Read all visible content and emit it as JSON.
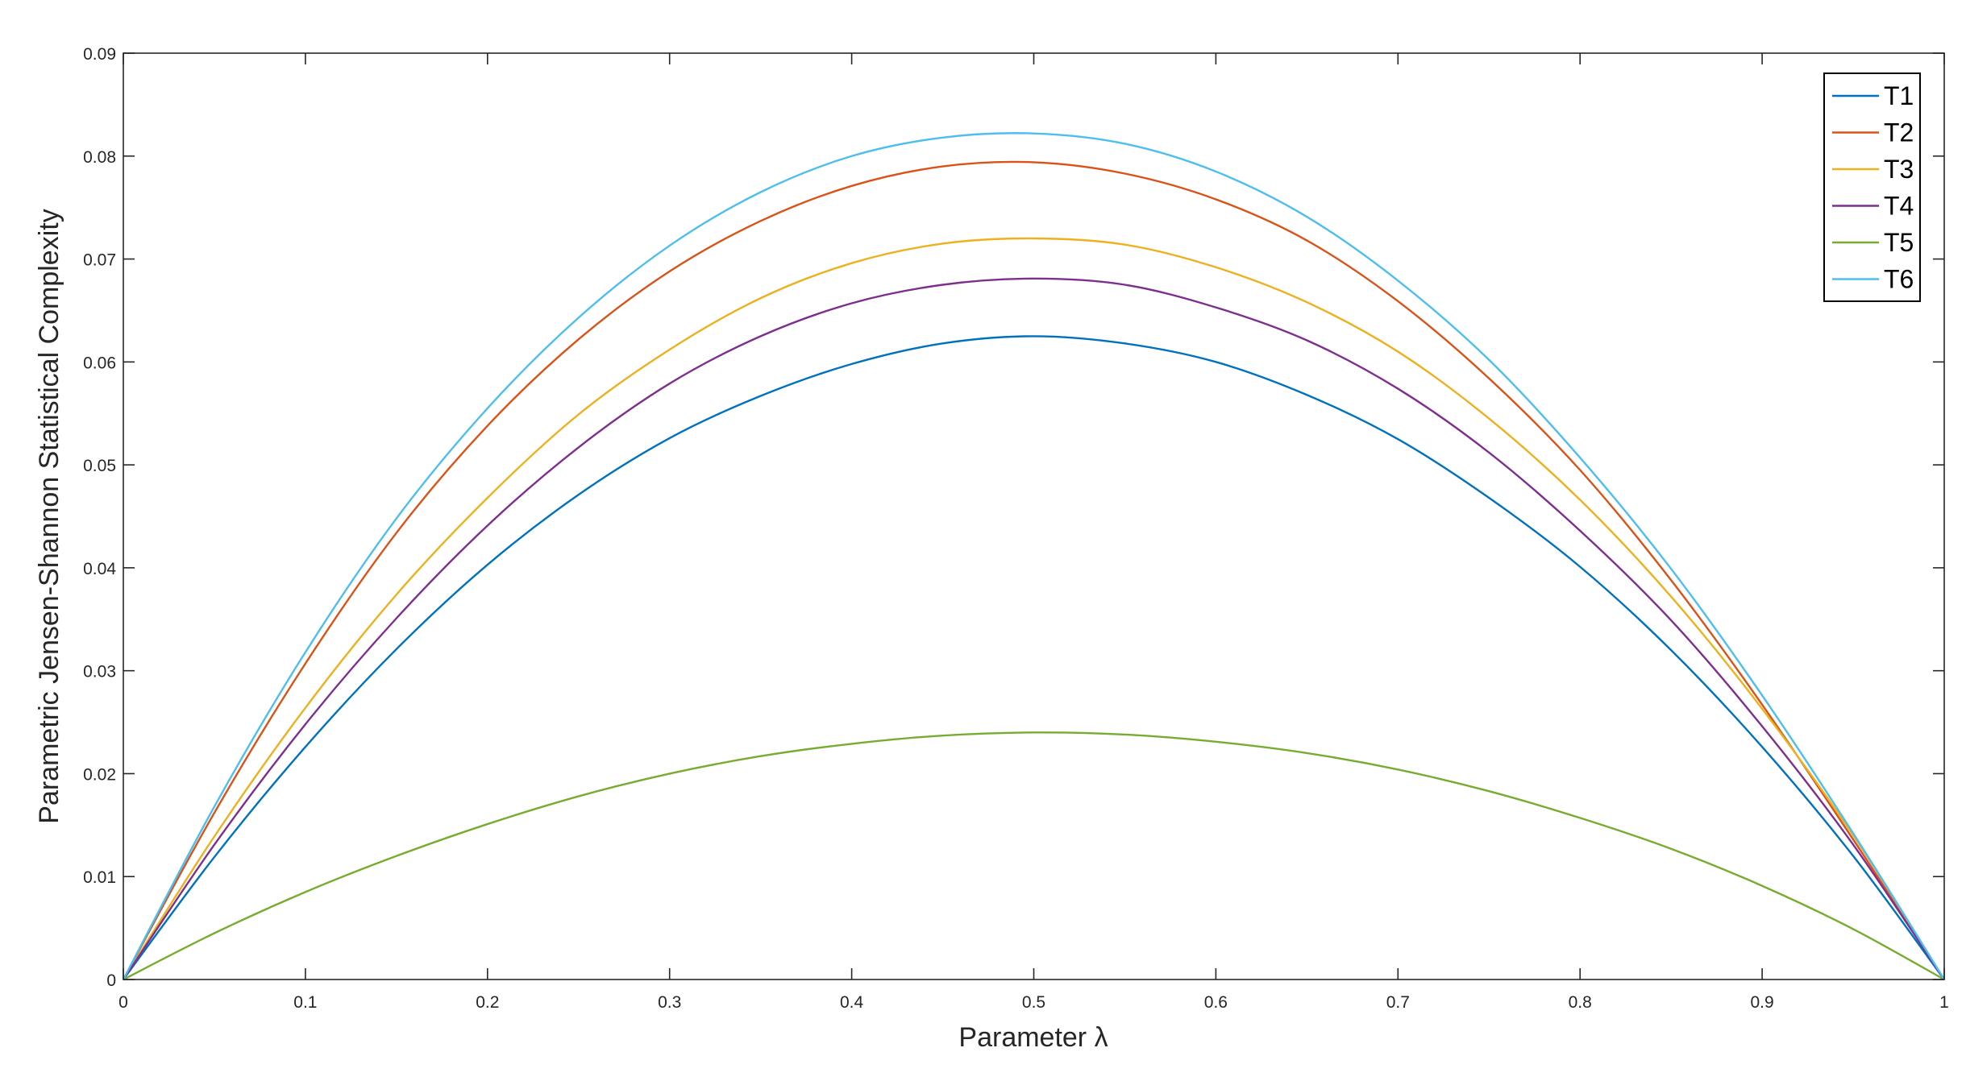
{
  "chart_data": {
    "type": "line",
    "title": "",
    "xlabel": "Parameter λ",
    "ylabel": "Parametric Jensen-Shannon Statistical Complexity",
    "xlim": [
      0,
      1
    ],
    "ylim": [
      0,
      0.09
    ],
    "xticks": [
      0,
      0.1,
      0.2,
      0.3,
      0.4,
      0.5,
      0.6,
      0.7,
      0.8,
      0.9,
      1
    ],
    "xtick_labels": [
      "0",
      "0.1",
      "0.2",
      "0.3",
      "0.4",
      "0.5",
      "0.6",
      "0.7",
      "0.8",
      "0.9",
      "1"
    ],
    "yticks": [
      0,
      0.01,
      0.02,
      0.03,
      0.04,
      0.05,
      0.06,
      0.07,
      0.08,
      0.09
    ],
    "ytick_labels": [
      "0",
      "0.01",
      "0.02",
      "0.03",
      "0.04",
      "0.05",
      "0.06",
      "0.07",
      "0.08",
      "0.09"
    ],
    "grid": false,
    "legend_position": "top-right",
    "x": [
      0,
      0.05,
      0.1,
      0.15,
      0.2,
      0.25,
      0.3,
      0.35,
      0.4,
      0.45,
      0.5,
      0.55,
      0.6,
      0.65,
      0.7,
      0.75,
      0.8,
      0.85,
      0.9,
      0.95,
      1
    ],
    "series": [
      {
        "name": "T1",
        "color": "#0072BD",
        "values": [
          0,
          0.0119,
          0.0226,
          0.0321,
          0.0403,
          0.0471,
          0.0526,
          0.0567,
          0.0598,
          0.0618,
          0.0625,
          0.0618,
          0.06,
          0.0568,
          0.0525,
          0.0468,
          0.0401,
          0.032,
          0.0226,
          0.012,
          0
        ]
      },
      {
        "name": "T2",
        "color": "#D95319",
        "values": [
          0,
          0.0162,
          0.0307,
          0.0434,
          0.0538,
          0.0622,
          0.0688,
          0.0737,
          0.0771,
          0.079,
          0.0794,
          0.0783,
          0.0758,
          0.0718,
          0.0659,
          0.0584,
          0.0495,
          0.0388,
          0.0267,
          0.0136,
          0
        ]
      },
      {
        "name": "T3",
        "color": "#EDB120",
        "values": [
          0,
          0.0139,
          0.0264,
          0.0374,
          0.0468,
          0.0549,
          0.0612,
          0.0662,
          0.0696,
          0.0715,
          0.072,
          0.0714,
          0.0692,
          0.0658,
          0.061,
          0.0545,
          0.0466,
          0.0372,
          0.0263,
          0.014,
          0
        ]
      },
      {
        "name": "T4",
        "color": "#7E2F8E",
        "values": [
          0,
          0.0131,
          0.0248,
          0.0351,
          0.0441,
          0.0517,
          0.0579,
          0.0625,
          0.0657,
          0.0675,
          0.0681,
          0.0675,
          0.0653,
          0.0621,
          0.0574,
          0.0512,
          0.0436,
          0.0349,
          0.0246,
          0.0131,
          0
        ]
      },
      {
        "name": "T5",
        "color": "#77AC30",
        "values": [
          0,
          0.0045,
          0.0085,
          0.012,
          0.0151,
          0.0178,
          0.02,
          0.0217,
          0.0229,
          0.0237,
          0.024,
          0.0238,
          0.0231,
          0.022,
          0.0204,
          0.0183,
          0.0157,
          0.0127,
          0.0091,
          0.0049,
          0
        ]
      },
      {
        "name": "T6",
        "color": "#4DBEEE",
        "values": [
          0,
          0.0168,
          0.0318,
          0.0448,
          0.0555,
          0.0643,
          0.0713,
          0.0765,
          0.08,
          0.0818,
          0.0822,
          0.0812,
          0.0785,
          0.0741,
          0.0679,
          0.0602,
          0.0507,
          0.0399,
          0.0276,
          0.0142,
          0
        ]
      }
    ]
  }
}
